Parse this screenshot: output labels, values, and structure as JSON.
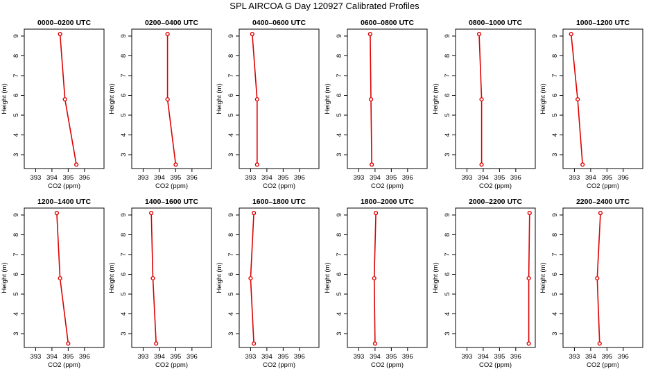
{
  "figure": {
    "title": "SPL AIRCOA G  Day 120927  Calibrated Profiles"
  },
  "chart_data": [
    {
      "type": "line",
      "title": "0000–0200 UTC",
      "xlabel": "CO2 (ppm)",
      "ylabel": "Height (m)",
      "xlim": [
        392.3,
        397.2
      ],
      "ylim": [
        2.3,
        9.35
      ],
      "xticks": [
        393,
        394,
        395,
        396
      ],
      "yticks": [
        3,
        4,
        5,
        6,
        7,
        8,
        9
      ],
      "series": [
        {
          "x": [
            395.5,
            394.8,
            394.5
          ],
          "y": [
            2.5,
            5.8,
            9.1
          ]
        }
      ]
    },
    {
      "type": "line",
      "title": "0200–0400 UTC",
      "xlabel": "CO2 (ppm)",
      "ylabel": "Height (m)",
      "xlim": [
        392.3,
        397.2
      ],
      "ylim": [
        2.3,
        9.35
      ],
      "xticks": [
        393,
        394,
        395,
        396
      ],
      "yticks": [
        3,
        4,
        5,
        6,
        7,
        8,
        9
      ],
      "series": [
        {
          "x": [
            395.0,
            394.5,
            394.5
          ],
          "y": [
            2.5,
            5.8,
            9.1
          ]
        }
      ]
    },
    {
      "type": "line",
      "title": "0400–0600 UTC",
      "xlabel": "CO2 (ppm)",
      "ylabel": "Height (m)",
      "xlim": [
        392.3,
        397.2
      ],
      "ylim": [
        2.3,
        9.35
      ],
      "xticks": [
        393,
        394,
        395,
        396
      ],
      "yticks": [
        3,
        4,
        5,
        6,
        7,
        8,
        9
      ],
      "series": [
        {
          "x": [
            393.4,
            393.4,
            393.1
          ],
          "y": [
            2.5,
            5.8,
            9.1
          ]
        }
      ]
    },
    {
      "type": "line",
      "title": "0600–0800 UTC",
      "xlabel": "CO2 (ppm)",
      "ylabel": "Height (m)",
      "xlim": [
        392.3,
        397.2
      ],
      "ylim": [
        2.3,
        9.35
      ],
      "xticks": [
        393,
        394,
        395,
        396
      ],
      "yticks": [
        3,
        4,
        5,
        6,
        7,
        8,
        9
      ],
      "series": [
        {
          "x": [
            393.8,
            393.75,
            393.7
          ],
          "y": [
            2.5,
            5.8,
            9.1
          ]
        }
      ]
    },
    {
      "type": "line",
      "title": "0800–1000 UTC",
      "xlabel": "CO2 (ppm)",
      "ylabel": "Height (m)",
      "xlim": [
        392.3,
        397.2
      ],
      "ylim": [
        2.3,
        9.35
      ],
      "xticks": [
        393,
        394,
        395,
        396
      ],
      "yticks": [
        3,
        4,
        5,
        6,
        7,
        8,
        9
      ],
      "series": [
        {
          "x": [
            393.9,
            393.9,
            393.75
          ],
          "y": [
            2.5,
            5.8,
            9.1
          ]
        }
      ]
    },
    {
      "type": "line",
      "title": "1000–1200 UTC",
      "xlabel": "CO2 (ppm)",
      "ylabel": "Height (m)",
      "xlim": [
        392.3,
        397.2
      ],
      "ylim": [
        2.3,
        9.35
      ],
      "xticks": [
        393,
        394,
        395,
        396
      ],
      "yticks": [
        3,
        4,
        5,
        6,
        7,
        8,
        9
      ],
      "series": [
        {
          "x": [
            393.5,
            393.2,
            392.8
          ],
          "y": [
            2.5,
            5.8,
            9.1
          ]
        }
      ]
    },
    {
      "type": "line",
      "title": "1200–1400 UTC",
      "xlabel": "CO2 (ppm)",
      "ylabel": "Height (m)",
      "xlim": [
        392.3,
        397.2
      ],
      "ylim": [
        2.3,
        9.35
      ],
      "xticks": [
        393,
        394,
        395,
        396
      ],
      "yticks": [
        3,
        4,
        5,
        6,
        7,
        8,
        9
      ],
      "series": [
        {
          "x": [
            395.0,
            394.5,
            394.3
          ],
          "y": [
            2.5,
            5.8,
            9.1
          ]
        }
      ]
    },
    {
      "type": "line",
      "title": "1400–1600 UTC",
      "xlabel": "CO2 (ppm)",
      "ylabel": "Height (m)",
      "xlim": [
        392.3,
        397.2
      ],
      "ylim": [
        2.3,
        9.35
      ],
      "xticks": [
        393,
        394,
        395,
        396
      ],
      "yticks": [
        3,
        4,
        5,
        6,
        7,
        8,
        9
      ],
      "series": [
        {
          "x": [
            393.8,
            393.6,
            393.5
          ],
          "y": [
            2.5,
            5.8,
            9.1
          ]
        }
      ]
    },
    {
      "type": "line",
      "title": "1600–1800 UTC",
      "xlabel": "CO2 (ppm)",
      "ylabel": "Height (m)",
      "xlim": [
        392.3,
        397.2
      ],
      "ylim": [
        2.3,
        9.35
      ],
      "xticks": [
        393,
        394,
        395,
        396
      ],
      "yticks": [
        3,
        4,
        5,
        6,
        7,
        8,
        9
      ],
      "series": [
        {
          "x": [
            393.2,
            393.0,
            393.2
          ],
          "y": [
            2.5,
            5.8,
            9.1
          ]
        }
      ]
    },
    {
      "type": "line",
      "title": "1800–2000 UTC",
      "xlabel": "CO2 (ppm)",
      "ylabel": "Height (m)",
      "xlim": [
        392.3,
        397.2
      ],
      "ylim": [
        2.3,
        9.35
      ],
      "xticks": [
        393,
        394,
        395,
        396
      ],
      "yticks": [
        3,
        4,
        5,
        6,
        7,
        8,
        9
      ],
      "series": [
        {
          "x": [
            394.0,
            393.95,
            394.05
          ],
          "y": [
            2.5,
            5.8,
            9.1
          ]
        }
      ]
    },
    {
      "type": "line",
      "title": "2000–2200 UTC",
      "xlabel": "CO2 (ppm)",
      "ylabel": "Height (m)",
      "xlim": [
        392.3,
        397.2
      ],
      "ylim": [
        2.3,
        9.35
      ],
      "xticks": [
        393,
        394,
        395,
        396
      ],
      "yticks": [
        3,
        4,
        5,
        6,
        7,
        8,
        9
      ],
      "series": [
        {
          "x": [
            396.8,
            396.8,
            396.85
          ],
          "y": [
            2.5,
            5.8,
            9.1
          ]
        }
      ]
    },
    {
      "type": "line",
      "title": "2200–2400 UTC",
      "xlabel": "CO2 (ppm)",
      "ylabel": "Height (m)",
      "xlim": [
        392.3,
        397.2
      ],
      "ylim": [
        2.3,
        9.35
      ],
      "xticks": [
        393,
        394,
        395,
        396
      ],
      "yticks": [
        3,
        4,
        5,
        6,
        7,
        8,
        9
      ],
      "series": [
        {
          "x": [
            394.55,
            394.4,
            394.6
          ],
          "y": [
            2.5,
            5.8,
            9.1
          ]
        }
      ]
    }
  ],
  "colors": {
    "series": "#dd0000",
    "axis": "#000000",
    "background": "#ffffff"
  }
}
